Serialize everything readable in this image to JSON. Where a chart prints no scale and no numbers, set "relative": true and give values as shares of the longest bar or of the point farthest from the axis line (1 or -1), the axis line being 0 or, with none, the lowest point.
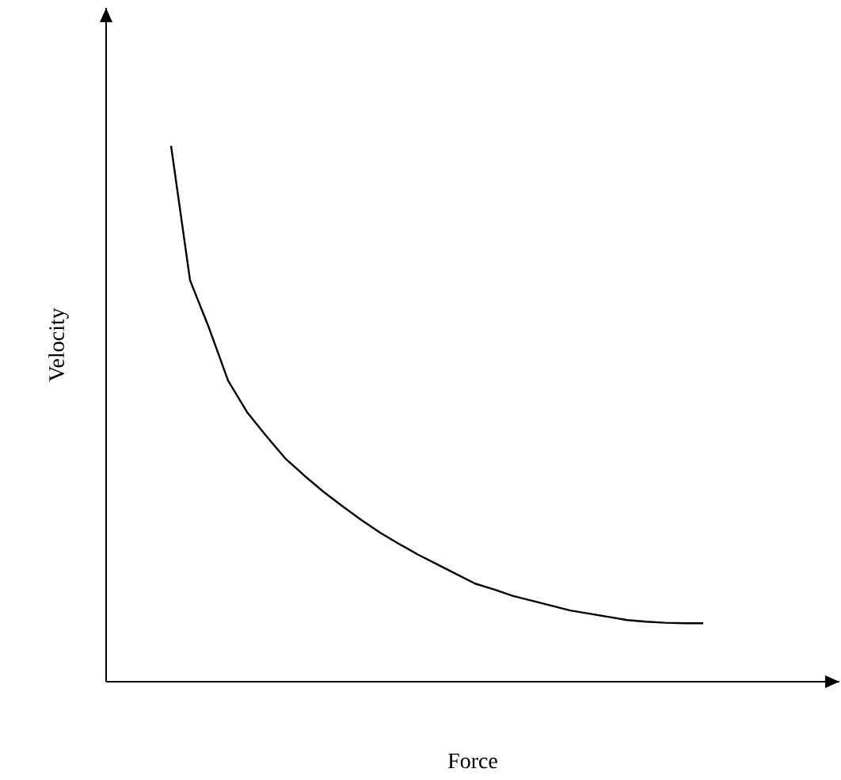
{
  "chart_data": {
    "type": "line",
    "xlabel": "Force",
    "ylabel": "Velocity",
    "relative": true,
    "color": "#000000",
    "categories": [
      null,
      null,
      null,
      null,
      null,
      null,
      null,
      null,
      null,
      null,
      null,
      null,
      null,
      null,
      null,
      null,
      null,
      null,
      null,
      null,
      null,
      null,
      null,
      null,
      null,
      null,
      null,
      null,
      null
    ],
    "values": [
      1.0,
      0.749,
      0.66,
      0.562,
      0.503,
      0.459,
      0.417,
      0.385,
      0.355,
      0.328,
      0.302,
      0.278,
      0.257,
      0.237,
      0.219,
      0.201,
      0.183,
      0.172,
      0.16,
      0.151,
      0.142,
      0.133,
      0.127,
      0.121,
      0.115,
      0.112,
      0.11,
      0.109,
      0.109
    ]
  }
}
